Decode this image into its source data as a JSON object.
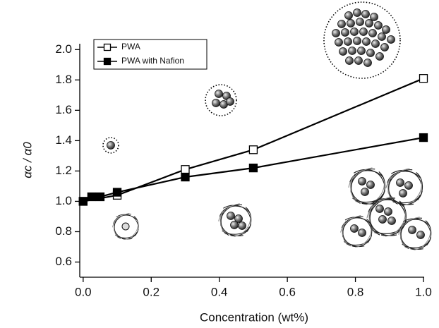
{
  "chart_data": {
    "type": "line",
    "x_label": "Concentration (wt%)",
    "y_label": "αc / α0",
    "xlim": [
      -0.01,
      1.0
    ],
    "ylim": [
      0.5,
      2.02
    ],
    "xticks": [
      {
        "value": 0,
        "label": "0.0"
      },
      0.2,
      0.4,
      0.6,
      0.8,
      {
        "value": 1,
        "label": "1.0"
      }
    ],
    "yticks": [
      0.6,
      0.8,
      {
        "value": 1,
        "label": "1.0"
      },
      1.2,
      1.4,
      1.6,
      1.8,
      {
        "value": 2,
        "label": "2.0"
      }
    ],
    "legend": "upper left",
    "series": [
      {
        "name": "PWA",
        "color": "#000000",
        "marker": "open-square",
        "x": [
          0,
          0.1,
          0.3,
          0.5,
          1.0
        ],
        "values": [
          1.0,
          1.04,
          1.21,
          1.34,
          1.81
        ]
      },
      {
        "name": "PWA with Nafion",
        "color": "#000000",
        "marker": "filled-square",
        "x": [
          0,
          0.025,
          0.05,
          0.1,
          0.3,
          0.5,
          1.0
        ],
        "values": [
          1.0,
          1.03,
          1.03,
          1.06,
          1.16,
          1.22,
          1.42
        ]
      }
    ]
  }
}
